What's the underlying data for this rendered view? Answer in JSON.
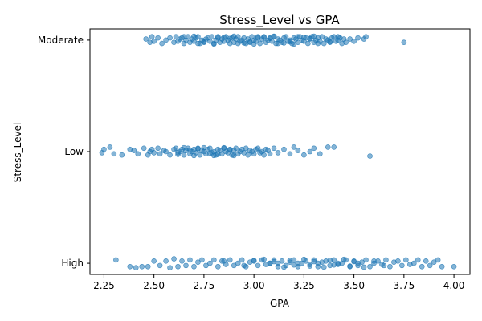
{
  "chart_data": {
    "type": "scatter",
    "title": "Stress_Level vs GPA",
    "xlabel": "GPA",
    "ylabel": "Stress_Level",
    "xlim": [
      2.18,
      4.08
    ],
    "categories": [
      "High",
      "Low",
      "Moderate"
    ],
    "x_ticks": [
      "2.25",
      "2.50",
      "2.75",
      "3.00",
      "3.25",
      "3.50",
      "3.75",
      "4.00"
    ],
    "x_tick_values": [
      2.25,
      2.5,
      2.75,
      3.0,
      3.25,
      3.5,
      3.75,
      4.0
    ],
    "grid": false,
    "legend": "none",
    "point_color": "#1f77b4",
    "point_alpha": 0.55,
    "series": [
      {
        "category": "Moderate",
        "x": [
          2.46,
          2.48,
          2.49,
          2.5,
          2.52,
          2.54,
          2.56,
          2.58,
          2.6,
          2.61,
          2.62,
          2.63,
          2.64,
          2.65,
          2.66,
          2.67,
          2.68,
          2.69,
          2.7,
          2.71,
          2.72,
          2.73,
          2.74,
          2.75,
          2.76,
          2.77,
          2.78,
          2.79,
          2.8,
          2.81,
          2.82,
          2.83,
          2.84,
          2.85,
          2.86,
          2.87,
          2.88,
          2.89,
          2.9,
          2.91,
          2.92,
          2.93,
          2.94,
          2.95,
          2.96,
          2.97,
          2.98,
          2.99,
          3.0,
          3.01,
          3.02,
          3.03,
          3.04,
          3.05,
          3.06,
          3.07,
          3.08,
          3.09,
          3.1,
          3.11,
          3.12,
          3.13,
          3.14,
          3.15,
          3.16,
          3.17,
          3.18,
          3.19,
          3.2,
          3.21,
          3.22,
          3.23,
          3.24,
          3.25,
          3.26,
          3.27,
          3.28,
          3.29,
          3.3,
          3.31,
          3.32,
          3.33,
          3.34,
          3.35,
          3.36,
          3.37,
          3.38,
          3.39,
          3.4,
          3.41,
          3.42,
          3.43,
          3.44,
          3.45,
          3.46,
          3.48,
          3.5,
          3.52,
          3.55,
          3.56,
          3.75,
          2.7,
          2.8,
          2.9,
          3.0,
          3.1,
          3.2,
          3.3,
          2.85,
          2.95,
          3.05,
          3.15,
          3.25,
          2.75,
          2.88,
          2.98,
          3.08,
          3.18,
          3.28,
          3.38,
          2.65,
          2.72,
          2.82,
          2.92,
          3.02,
          3.12,
          3.22,
          3.32,
          3.42
        ],
        "y_jitter": [
          0.01,
          -0.02,
          0.03,
          -0.01,
          0.02,
          -0.03,
          0.0,
          0.02,
          -0.02,
          0.03,
          -0.01,
          0.01,
          0.02,
          -0.03,
          0.0,
          0.03,
          -0.02,
          0.01,
          -0.01,
          0.02,
          0.03,
          -0.03,
          0.0,
          -0.02,
          0.01,
          0.02,
          -0.01,
          0.03,
          -0.03,
          0.0,
          0.02,
          -0.02,
          0.01,
          -0.01,
          0.03,
          0.0,
          -0.03,
          0.02,
          -0.02,
          0.01,
          0.03,
          -0.01,
          0.0,
          0.02,
          -0.03,
          0.01,
          -0.02,
          0.03,
          0.0,
          -0.01,
          0.02,
          -0.03,
          0.01,
          0.03,
          -0.02,
          0.0,
          0.02,
          -0.01,
          0.03,
          -0.03,
          0.01,
          0.0,
          -0.02,
          0.02,
          0.03,
          -0.01,
          0.0,
          -0.03,
          0.02,
          0.01,
          -0.02,
          0.03,
          0.0,
          -0.01,
          0.02,
          -0.03,
          0.01,
          0.03,
          -0.02,
          0.0,
          0.02,
          -0.01,
          0.03,
          -0.03,
          0.01,
          0.0,
          -0.02,
          0.02,
          0.03,
          -0.01,
          0.0,
          0.02,
          -0.03,
          0.01,
          -0.02,
          0.01,
          -0.01,
          0.02,
          0.01,
          0.03,
          -0.02,
          0.035,
          -0.035,
          0.035,
          -0.035,
          0.035,
          -0.035,
          0.035,
          0.025,
          -0.025,
          0.025,
          -0.025,
          0.025,
          -0.015,
          0.015,
          -0.015,
          0.015,
          -0.015,
          0.015,
          -0.015,
          0.03,
          -0.03,
          0.03,
          -0.03,
          0.03,
          -0.03,
          0.03,
          -0.03,
          0.03
        ]
      },
      {
        "category": "Low",
        "x": [
          2.24,
          2.25,
          2.28,
          2.3,
          2.34,
          2.38,
          2.4,
          2.42,
          2.45,
          2.47,
          2.48,
          2.49,
          2.5,
          2.52,
          2.53,
          2.55,
          2.56,
          2.58,
          2.6,
          2.61,
          2.62,
          2.63,
          2.64,
          2.65,
          2.66,
          2.67,
          2.68,
          2.69,
          2.7,
          2.71,
          2.72,
          2.73,
          2.74,
          2.75,
          2.76,
          2.77,
          2.78,
          2.79,
          2.8,
          2.81,
          2.82,
          2.83,
          2.84,
          2.85,
          2.86,
          2.87,
          2.88,
          2.89,
          2.9,
          2.91,
          2.92,
          2.93,
          2.94,
          2.95,
          2.96,
          2.97,
          2.98,
          2.99,
          3.0,
          3.01,
          3.02,
          3.03,
          3.04,
          3.05,
          3.06,
          3.07,
          3.08,
          3.1,
          3.12,
          3.15,
          3.18,
          3.2,
          3.22,
          3.25,
          3.28,
          3.3,
          3.33,
          3.37,
          3.4,
          3.58,
          2.65,
          2.7,
          2.75,
          2.8,
          2.85,
          2.9,
          2.68,
          2.78,
          2.88,
          2.62,
          2.72,
          2.82
        ],
        "y_jitter": [
          -0.01,
          0.02,
          0.04,
          -0.02,
          -0.03,
          0.02,
          0.01,
          -0.02,
          0.03,
          -0.03,
          0.0,
          0.02,
          -0.01,
          0.03,
          -0.02,
          0.01,
          0.0,
          -0.03,
          0.02,
          0.03,
          -0.01,
          0.0,
          0.02,
          -0.03,
          0.01,
          0.03,
          -0.02,
          0.0,
          0.02,
          -0.01,
          0.03,
          -0.03,
          0.01,
          0.0,
          -0.02,
          0.02,
          0.03,
          -0.01,
          0.0,
          -0.03,
          0.02,
          0.01,
          -0.02,
          0.03,
          0.0,
          -0.01,
          0.02,
          -0.03,
          0.01,
          0.03,
          -0.02,
          0.0,
          0.02,
          -0.01,
          0.03,
          -0.03,
          0.01,
          0.0,
          -0.02,
          0.02,
          0.03,
          -0.01,
          0.0,
          -0.03,
          0.02,
          0.01,
          -0.02,
          0.03,
          -0.01,
          0.02,
          -0.02,
          0.04,
          0.01,
          -0.03,
          0.0,
          0.03,
          -0.02,
          0.04,
          0.04,
          -0.04,
          0.035,
          -0.035,
          0.035,
          -0.035,
          0.035,
          -0.035,
          0.015,
          -0.015,
          0.015,
          -0.025,
          0.025,
          -0.025
        ]
      },
      {
        "category": "High",
        "x": [
          2.31,
          2.38,
          2.41,
          2.44,
          2.47,
          2.5,
          2.53,
          2.56,
          2.58,
          2.6,
          2.62,
          2.64,
          2.66,
          2.68,
          2.7,
          2.72,
          2.74,
          2.76,
          2.78,
          2.8,
          2.82,
          2.84,
          2.86,
          2.88,
          2.9,
          2.92,
          2.94,
          2.96,
          2.98,
          3.0,
          3.02,
          3.04,
          3.06,
          3.08,
          3.1,
          3.12,
          3.14,
          3.16,
          3.18,
          3.2,
          3.22,
          3.24,
          3.26,
          3.28,
          3.3,
          3.32,
          3.34,
          3.36,
          3.38,
          3.4,
          3.42,
          3.44,
          3.46,
          3.48,
          3.5,
          3.52,
          3.54,
          3.56,
          3.58,
          3.6,
          3.62,
          3.64,
          3.66,
          3.68,
          3.7,
          3.72,
          3.74,
          3.76,
          3.78,
          3.8,
          3.82,
          3.84,
          3.86,
          3.88,
          3.9,
          3.92,
          3.94,
          4.0,
          3.05,
          3.15,
          3.25,
          3.35,
          3.45,
          3.55,
          3.1,
          3.2,
          3.3,
          3.4,
          3.5,
          3.0,
          3.28,
          3.38,
          3.48,
          3.18,
          2.95,
          2.85,
          3.6,
          3.65,
          3.22,
          3.32,
          3.42,
          3.52,
          3.12,
          3.08
        ],
        "y_jitter": [
          0.03,
          -0.03,
          -0.04,
          -0.03,
          -0.03,
          0.02,
          -0.02,
          0.02,
          -0.04,
          0.04,
          -0.03,
          0.02,
          -0.02,
          0.03,
          -0.03,
          0.01,
          0.03,
          -0.02,
          0.0,
          0.03,
          -0.03,
          0.02,
          -0.01,
          0.03,
          -0.02,
          0.0,
          0.03,
          -0.03,
          0.01,
          0.02,
          -0.02,
          0.03,
          -0.01,
          0.0,
          0.03,
          -0.03,
          0.02,
          -0.02,
          0.01,
          0.03,
          -0.03,
          0.0,
          0.02,
          -0.01,
          0.03,
          -0.03,
          0.01,
          0.02,
          -0.02,
          0.03,
          -0.01,
          0.0,
          0.03,
          -0.03,
          0.02,
          -0.02,
          0.01,
          0.03,
          -0.03,
          0.0,
          0.02,
          -0.01,
          0.03,
          -0.03,
          0.01,
          0.02,
          -0.02,
          0.03,
          -0.01,
          0.0,
          0.03,
          -0.03,
          0.02,
          -0.02,
          0.01,
          0.03,
          -0.03,
          -0.03,
          0.035,
          -0.035,
          0.035,
          -0.035,
          0.035,
          -0.035,
          0.015,
          -0.015,
          0.015,
          -0.015,
          0.015,
          0.025,
          -0.025,
          0.025,
          -0.025,
          0.025,
          -0.02,
          0.02,
          0.02,
          -0.02,
          0.0,
          0.0,
          0.0,
          0.0,
          0.0,
          0.0
        ]
      }
    ]
  }
}
